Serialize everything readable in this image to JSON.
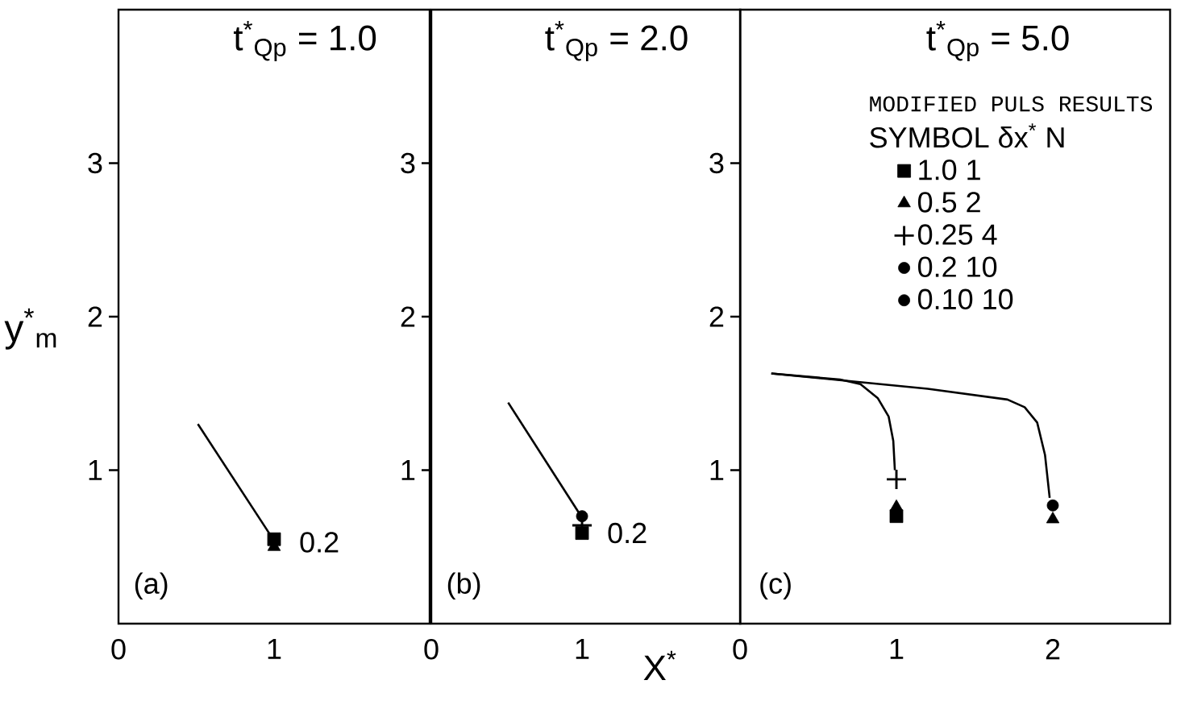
{
  "chart_data": [
    {
      "type": "scatter",
      "title": "t$^{*}$$_{Qp}$ = 1.0",
      "ylabel": "y$^{*}$$_{m}$",
      "xlim": [
        0,
        2.0
      ],
      "ylim": [
        0,
        4
      ],
      "xticks": [
        0,
        1
      ],
      "yticks": [
        1,
        2,
        3
      ],
      "legend": false,
      "annotations": [
        "(a)",
        {
          "text": "0.2",
          "x": 1,
          "y": 0.53
        }
      ],
      "series": [
        {
          "type": "line",
          "color": "#000000",
          "x": [
            0.51,
            1.0
          ],
          "values": [
            1.3,
            0.54
          ]
        },
        {
          "marker": "square",
          "color": "#000000",
          "x": [
            1
          ],
          "values": [
            0.55
          ]
        },
        {
          "marker": "triangle",
          "color": "#000000",
          "x": [
            1
          ],
          "values": [
            0.5
          ]
        }
      ]
    },
    {
      "type": "scatter",
      "title": "t$^{*}$$_{Qp}$ = 2.0",
      "xlabel": "X$^{*}$",
      "xlim": [
        0,
        2.05
      ],
      "ylim": [
        0,
        4
      ],
      "xticks": [
        0,
        1
      ],
      "yticks": [
        1,
        2,
        3
      ],
      "legend": false,
      "annotations": [
        "(b)",
        {
          "text": "0.2",
          "x": 1,
          "y": 0.59
        }
      ],
      "series": [
        {
          "type": "line",
          "color": "#000000",
          "x": [
            0.51,
            1.0
          ],
          "values": [
            1.44,
            0.69
          ]
        },
        {
          "marker": "circle",
          "color": "#000000",
          "x": [
            1
          ],
          "values": [
            0.7
          ]
        },
        {
          "marker": "cross",
          "color": "#000000",
          "x": [
            1
          ],
          "values": [
            0.64
          ]
        },
        {
          "marker": "square",
          "color": "#000000",
          "x": [
            1
          ],
          "values": [
            0.59
          ]
        }
      ]
    },
    {
      "type": "scatter",
      "title": "t$^{*}$$_{Qp}$ = 5.0",
      "legend_title": "MODIFIED PULS RESULTS",
      "xlim": [
        0,
        2.75
      ],
      "ylim": [
        0,
        4
      ],
      "xticks": [
        0,
        1,
        2
      ],
      "yticks": [
        1,
        2,
        3
      ],
      "legend": "top right",
      "annotations": [
        "(c)",
        "SYMBOL δx$^{*}$ N"
      ],
      "series": [
        {
          "type": "line",
          "color": "#000000",
          "x": [
            0.2,
            0.64,
            0.77,
            0.88,
            0.95,
            0.98,
            0.99
          ],
          "values": [
            1.63,
            1.59,
            1.56,
            1.47,
            1.35,
            1.19,
            1.0
          ]
        },
        {
          "type": "line",
          "color": "#000000",
          "x": [
            0.2,
            1.2,
            1.71,
            1.82,
            1.9,
            1.95,
            1.98
          ],
          "values": [
            1.63,
            1.53,
            1.46,
            1.41,
            1.31,
            1.1,
            0.82
          ]
        },
        {
          "name": "1.0 1",
          "marker": "square",
          "color": "#000000",
          "x": [
            1
          ],
          "values": [
            0.7
          ]
        },
        {
          "name": "0.5 2",
          "marker": "triangle",
          "color": "#000000",
          "x": [
            1,
            2
          ],
          "values": [
            0.76,
            0.68
          ]
        },
        {
          "name": "0.25 4",
          "marker": "cross",
          "color": "#000000",
          "x": [
            1
          ],
          "values": [
            0.94
          ]
        },
        {
          "name": "0.2 10",
          "marker": "circle",
          "color": "#000000",
          "x": [
            2
          ],
          "values": [
            0.77
          ]
        },
        {
          "name": "0.10 10",
          "marker": "circle",
          "color": "#000000"
        }
      ]
    }
  ]
}
